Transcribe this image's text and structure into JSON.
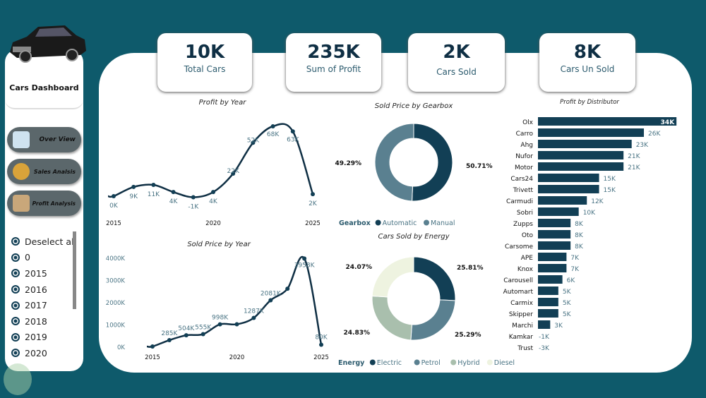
{
  "sidebar": {
    "title": "Cars Dashboard",
    "nav": [
      {
        "label": "Over View"
      },
      {
        "label": "Sales Analsis"
      },
      {
        "label": "Profit Analysis"
      }
    ],
    "slicer": [
      "Deselect all",
      "0",
      "2015",
      "2016",
      "2017",
      "2018",
      "2019",
      "2020"
    ]
  },
  "kpis": [
    {
      "value": "10K",
      "label": "Total Cars"
    },
    {
      "value": "235K",
      "label": "Sum of Profit"
    },
    {
      "value": "2K",
      "label": "Cars Sold"
    },
    {
      "value": "8K",
      "label": "Cars Un Sold"
    }
  ],
  "colors": {
    "background": "#0e5a6b",
    "dark": "#123f55",
    "mid": "#5a8090",
    "light_green": "#a9bfad",
    "cream": "#eef3e0"
  },
  "chart_data": [
    {
      "type": "line",
      "title": "Profit by Year",
      "x": [
        2015,
        2016,
        2017,
        2018,
        2019,
        2020,
        2021,
        2022,
        2023,
        2024,
        2025
      ],
      "values": [
        0,
        9,
        11,
        4,
        -1,
        4,
        22,
        52,
        68,
        63,
        2
      ],
      "labels": [
        "0K",
        "9K",
        "11K",
        "4K",
        "-1K",
        "4K",
        "22K",
        "52K",
        "68K",
        "63K",
        "2K"
      ],
      "xticks": [
        "2015",
        "2020",
        "2025"
      ]
    },
    {
      "type": "line",
      "title": "Sold Price by Year",
      "x": [
        2015,
        2016,
        2017,
        2018,
        2019,
        2020,
        2021,
        2022,
        2023,
        2024,
        2025
      ],
      "values": [
        0,
        285,
        504,
        555,
        998,
        1000,
        1287,
        2081,
        2600,
        3958,
        80
      ],
      "labels": [
        "",
        "285K",
        "504K",
        "555K",
        "998K",
        "",
        "1287K",
        "2081K",
        "",
        "3958K",
        "80K"
      ],
      "xticks": [
        "2015",
        "2020",
        "2025"
      ],
      "yticks": [
        "0K",
        "1000K",
        "2000K",
        "3000K",
        "4000K"
      ],
      "ylim": [
        0,
        4000
      ]
    },
    {
      "type": "pie",
      "title": "Sold Price by Gearbox",
      "legend_title": "Gearbox",
      "slices": [
        {
          "name": "Automatic",
          "value": 50.71,
          "label": "50.71%"
        },
        {
          "name": "Manual",
          "value": 49.29,
          "label": "49.29%"
        }
      ]
    },
    {
      "type": "pie",
      "title": "Cars Sold by Energy",
      "legend_title": "Energy",
      "slices": [
        {
          "name": "Electric",
          "value": 25.81,
          "label": "25.81%"
        },
        {
          "name": "Petrol",
          "value": 25.29,
          "label": "25.29%"
        },
        {
          "name": "Hybrid",
          "value": 24.83,
          "label": "24.83%"
        },
        {
          "name": "Diesel",
          "value": 24.07,
          "label": "24.07%"
        }
      ]
    },
    {
      "type": "bar",
      "title": "Profit by Distributor",
      "categories": [
        "Olx",
        "Carro",
        "Ahg",
        "Nufor",
        "Motor",
        "Cars24",
        "Trivett",
        "Carmudi",
        "Sobri",
        "Zupps",
        "Oto",
        "Carsome",
        "APE",
        "Knox",
        "Carousell",
        "Automart",
        "Carmix",
        "Skipper",
        "Marchi",
        "Kamkar",
        "Trust"
      ],
      "values": [
        34,
        26,
        23,
        21,
        21,
        15,
        15,
        12,
        10,
        8,
        8,
        8,
        7,
        7,
        6,
        5,
        5,
        5,
        3,
        -1,
        -3
      ],
      "labels": [
        "34K",
        "26K",
        "23K",
        "21K",
        "21K",
        "15K",
        "15K",
        "12K",
        "10K",
        "8K",
        "8K",
        "8K",
        "7K",
        "7K",
        "6K",
        "5K",
        "5K",
        "5K",
        "3K",
        "-1K",
        "-3K"
      ]
    }
  ]
}
